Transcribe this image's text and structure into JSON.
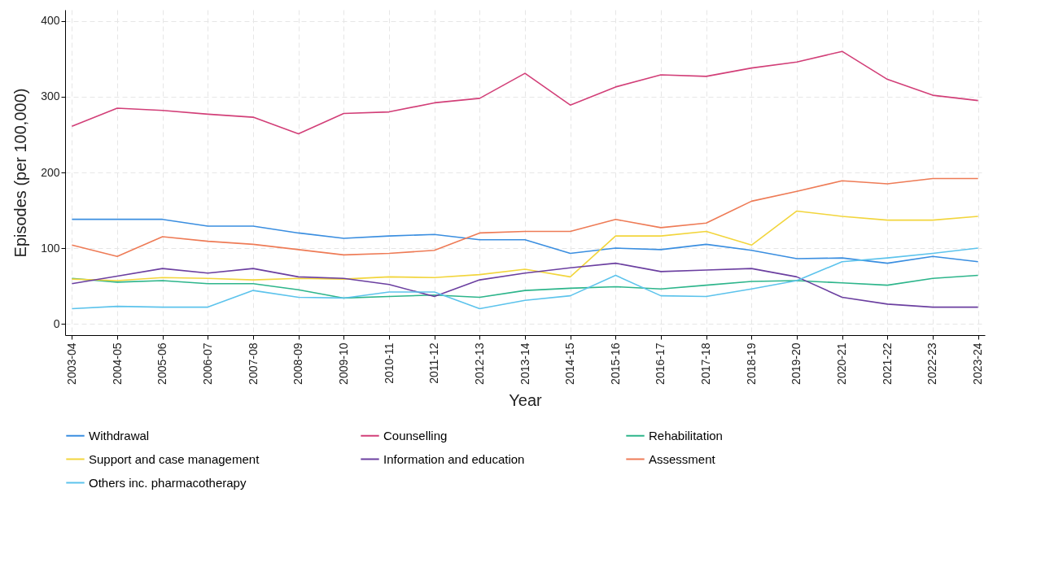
{
  "chart_data": {
    "type": "line",
    "xlabel": "Year",
    "ylabel": "Episodes  (per 100,000)",
    "categories": [
      "2003-04",
      "2004-05",
      "2005-06",
      "2006-07",
      "2007-08",
      "2008-09",
      "2009-10",
      "2010-11",
      "2011-12",
      "2012-13",
      "2013-14",
      "2014-15",
      "2015-16",
      "2016-17",
      "2017-18",
      "2018-19",
      "2019-20",
      "2020-21",
      "2021-22",
      "2022-23",
      "2023-24"
    ],
    "ylim": [
      -15,
      415
    ],
    "yticks": [
      0,
      100,
      200,
      300,
      400
    ],
    "grid": true,
    "legend": "bottom",
    "line_style": "solid",
    "series": [
      {
        "name": "Withdrawal",
        "color": "#3a8ee0",
        "values": [
          138,
          138,
          138,
          129,
          129,
          120,
          113,
          116,
          118,
          111,
          111,
          93,
          100,
          98,
          105,
          97,
          86,
          87,
          80,
          89,
          82
        ]
      },
      {
        "name": "Counselling",
        "color": "#d23f78",
        "values": [
          261,
          285,
          282,
          277,
          273,
          251,
          278,
          280,
          292,
          298,
          331,
          289,
          313,
          329,
          327,
          338,
          346,
          360,
          323,
          302,
          295
        ]
      },
      {
        "name": "Rehabilitation",
        "color": "#2db58b",
        "values": [
          60,
          55,
          57,
          53,
          53,
          45,
          34,
          36,
          38,
          35,
          44,
          47,
          49,
          46,
          51,
          56,
          57,
          54,
          51,
          60,
          64
        ]
      },
      {
        "name": "Support and case management",
        "color": "#f2d53c",
        "values": [
          59,
          57,
          61,
          60,
          58,
          60,
          59,
          62,
          61,
          65,
          72,
          62,
          116,
          116,
          122,
          104,
          149,
          142,
          137,
          137,
          142
        ]
      },
      {
        "name": "Information and education",
        "color": "#6b3fa0",
        "values": [
          53,
          63,
          73,
          67,
          73,
          62,
          60,
          52,
          36,
          58,
          67,
          74,
          80,
          69,
          71,
          73,
          62,
          35,
          26,
          22,
          22
        ]
      },
      {
        "name": "Assessment",
        "color": "#ee7b56",
        "values": [
          104,
          89,
          115,
          109,
          105,
          98,
          91,
          93,
          97,
          120,
          122,
          122,
          138,
          127,
          133,
          162,
          175,
          189,
          185,
          192,
          192
        ]
      },
      {
        "name": "Others inc. pharmacotherapy",
        "color": "#5cc3ec",
        "values": [
          20,
          23,
          22,
          22,
          44,
          35,
          34,
          42,
          42,
          20,
          31,
          37,
          64,
          37,
          36,
          46,
          57,
          82,
          87,
          93,
          100
        ]
      }
    ]
  }
}
